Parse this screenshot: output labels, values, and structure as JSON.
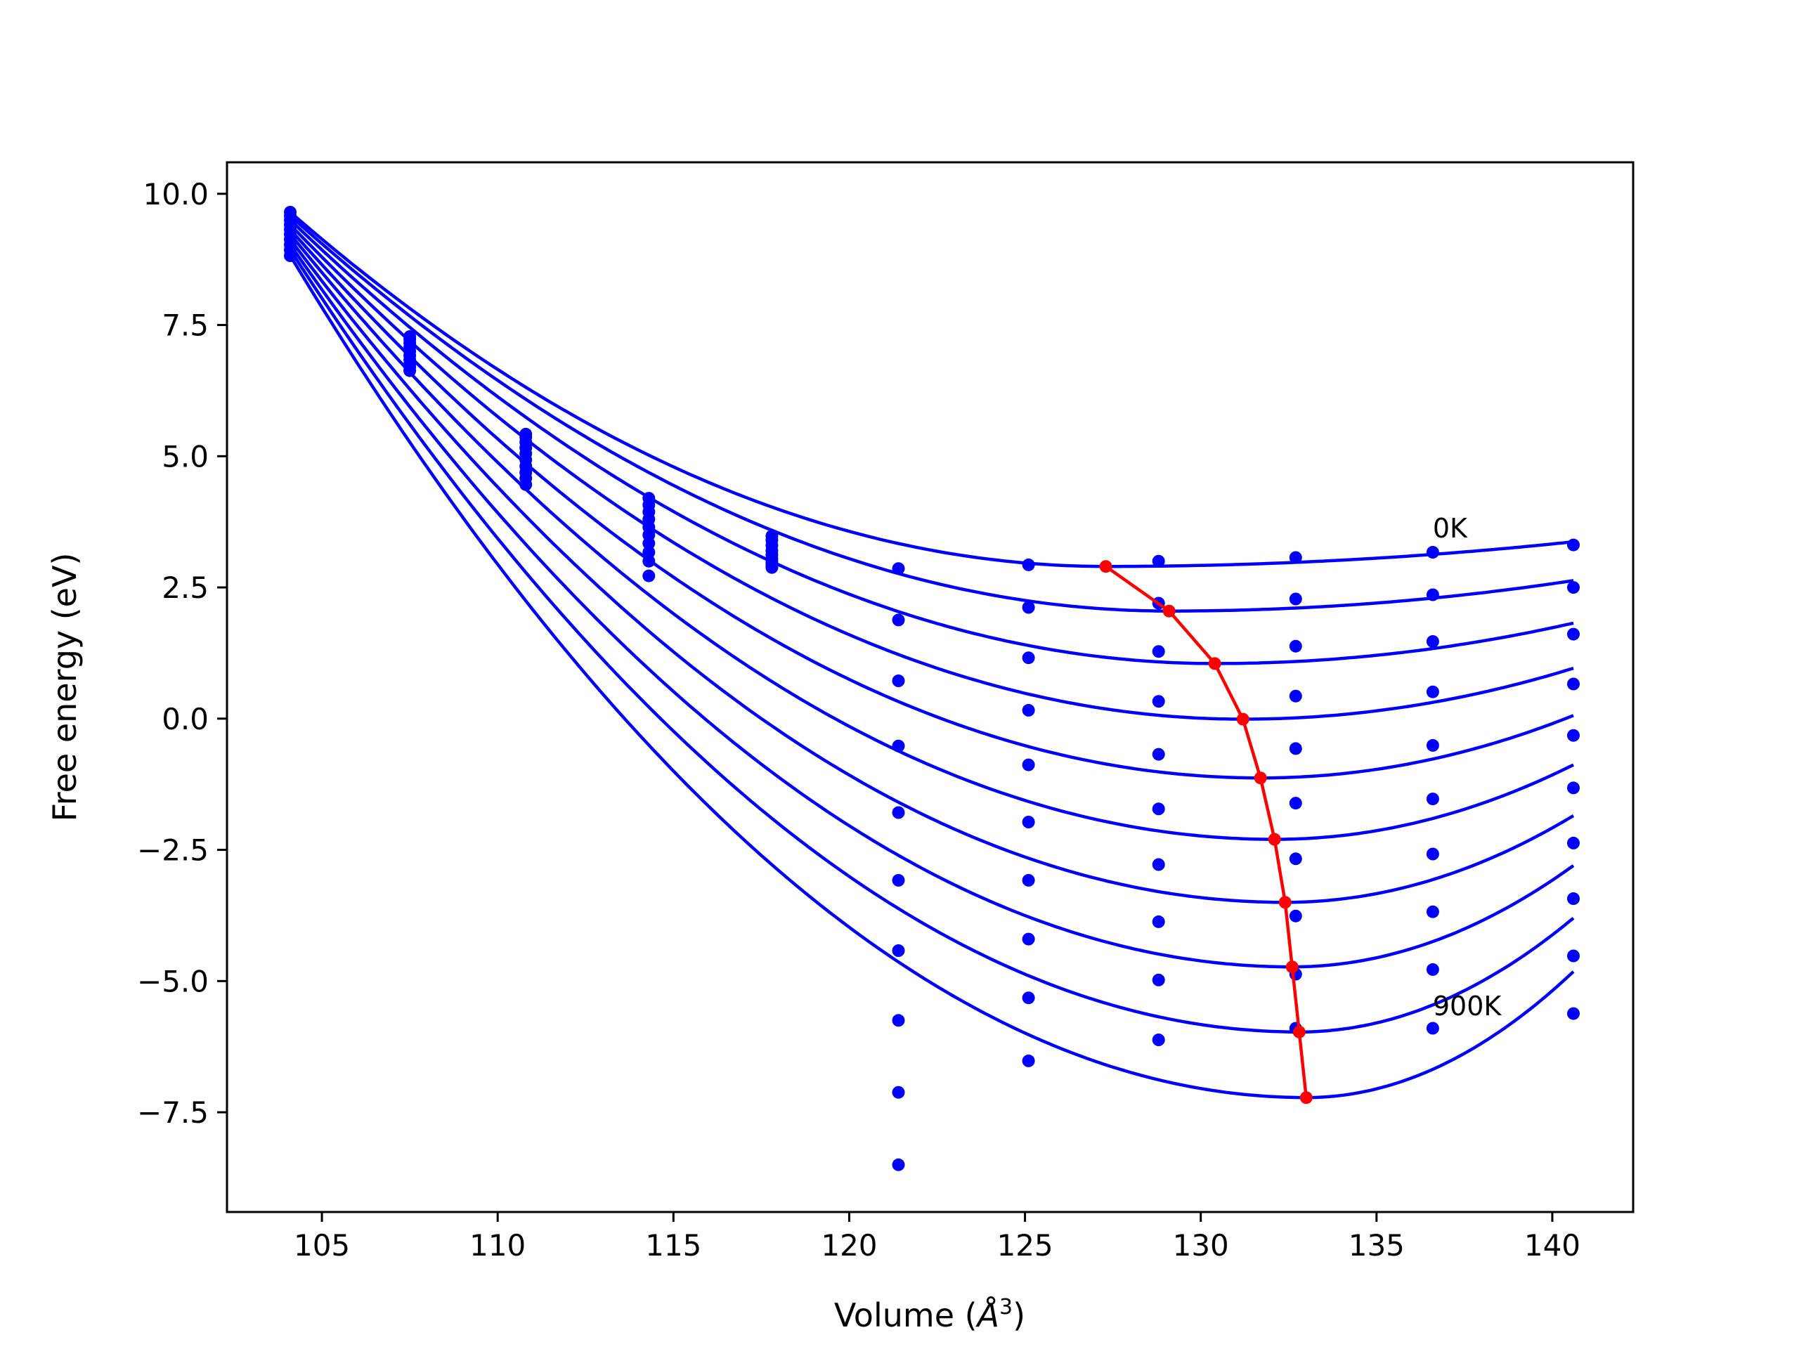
{
  "chart_data": {
    "type": "line",
    "title": "",
    "xlabel": "Volume (Å³)",
    "xlabel_base": "Volume (",
    "xlabel_unit": "Å",
    "xlabel_exp": "3",
    "xlabel_close": ")",
    "ylabel": "Free energy (eV)",
    "xlim": [
      102.3,
      142.3
    ],
    "ylim": [
      -9.4,
      10.6
    ],
    "xticks": [
      105,
      110,
      115,
      120,
      125,
      130,
      135,
      140
    ],
    "xtick_labels": [
      "105",
      "110",
      "115",
      "120",
      "125",
      "130",
      "135",
      "140"
    ],
    "yticks": [
      -7.5,
      -5.0,
      -2.5,
      0.0,
      2.5,
      5.0,
      7.5,
      10.0
    ],
    "ytick_labels": [
      "−7.5",
      "−5.0",
      "−2.5",
      "0.0",
      "2.5",
      "5.0",
      "7.5",
      "10.0"
    ],
    "grid": false,
    "colors": {
      "curves": "#0000ff",
      "minimum_path": "#ff0000"
    },
    "annotations": [
      {
        "text": "0K",
        "x": 136.6,
        "y": 3.45
      },
      {
        "text": "900K",
        "x": 136.6,
        "y": -5.65
      }
    ],
    "volumes": [
      104.1,
      107.5,
      110.8,
      114.3,
      117.8,
      121.4,
      125.1,
      128.8,
      132.7,
      136.6,
      140.6
    ],
    "series": [
      {
        "values": [
          9.65,
          7.28,
          5.42,
          4.2,
          3.48,
          2.86,
          2.93,
          3.0,
          3.07,
          3.17,
          3.31
        ]
      },
      {
        "values": [
          9.58,
          7.23,
          5.36,
          4.07,
          3.4,
          1.88,
          2.12,
          2.2,
          2.28,
          2.36,
          2.5
        ]
      },
      {
        "values": [
          9.5,
          7.16,
          5.27,
          3.94,
          3.3,
          0.72,
          1.16,
          1.28,
          1.38,
          1.47,
          1.61
        ]
      },
      {
        "values": [
          9.41,
          7.08,
          5.16,
          3.8,
          3.2,
          -0.52,
          0.16,
          0.33,
          0.43,
          0.51,
          0.66
        ]
      },
      {
        "values": [
          9.32,
          7.0,
          5.05,
          3.65,
          3.12,
          -1.79,
          -0.88,
          -0.68,
          -0.57,
          -0.51,
          -0.32
        ]
      },
      {
        "values": [
          9.23,
          6.92,
          4.93,
          3.5,
          3.04,
          -3.08,
          -1.97,
          -1.72,
          -1.61,
          -1.53,
          -1.32
        ]
      },
      {
        "values": [
          9.13,
          6.84,
          4.81,
          3.34,
          2.98,
          -4.42,
          -3.08,
          -2.78,
          -2.67,
          -2.58,
          -2.37
        ]
      },
      {
        "values": [
          9.03,
          6.76,
          4.69,
          3.17,
          2.93,
          -5.75,
          -4.2,
          -3.87,
          -3.76,
          -3.68,
          -3.43
        ]
      },
      {
        "values": [
          8.93,
          6.7,
          4.58,
          3.0,
          2.9,
          -7.12,
          -5.32,
          -4.98,
          -4.87,
          -4.78,
          -4.52
        ]
      },
      {
        "values": [
          8.82,
          6.63,
          4.46,
          2.72,
          2.88,
          -8.5,
          -6.52,
          -6.12,
          -5.9,
          -5.9,
          -5.62
        ]
      }
    ],
    "fits": [
      {
        "min_v": 127.3,
        "min_e": 2.9,
        "left": 9.65,
        "right": 3.37
      },
      {
        "min_v": 129.1,
        "min_e": 2.05,
        "left": 9.58,
        "right": 2.63
      },
      {
        "min_v": 130.4,
        "min_e": 1.05,
        "left": 9.5,
        "right": 1.82
      },
      {
        "min_v": 131.2,
        "min_e": -0.01,
        "left": 9.41,
        "right": 0.96
      },
      {
        "min_v": 131.7,
        "min_e": -1.13,
        "left": 9.32,
        "right": 0.06
      },
      {
        "min_v": 132.1,
        "min_e": -2.3,
        "left": 9.23,
        "right": -0.88
      },
      {
        "min_v": 132.4,
        "min_e": -3.5,
        "left": 9.13,
        "right": -1.85
      },
      {
        "min_v": 132.6,
        "min_e": -4.73,
        "left": 9.03,
        "right": -2.8
      },
      {
        "min_v": 132.8,
        "min_e": -5.97,
        "left": 8.93,
        "right": -3.8
      },
      {
        "min_v": 133.0,
        "min_e": -7.22,
        "left": 8.82,
        "right": -4.82
      }
    ]
  }
}
